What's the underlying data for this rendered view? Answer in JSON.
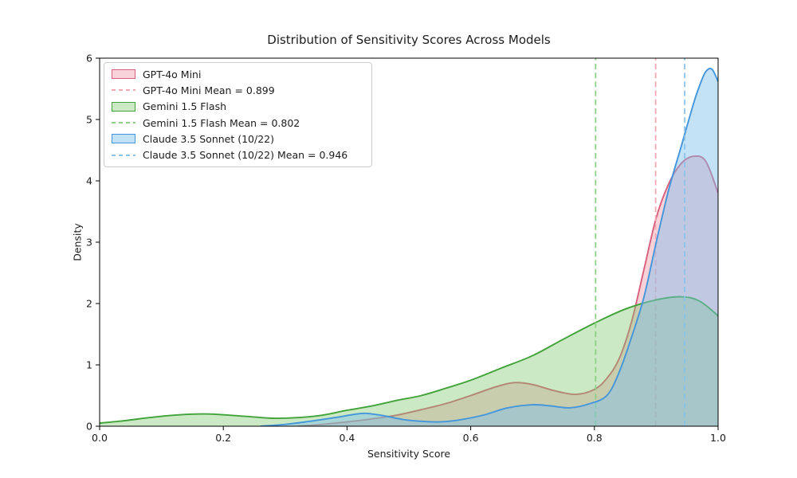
{
  "chart_data": {
    "type": "area",
    "subtype": "kde-density",
    "title": "Distribution of Sensitivity Scores Across Models",
    "xlabel": "Sensitivity Score",
    "ylabel": "Density",
    "xlim": [
      0.0,
      1.0
    ],
    "ylim": [
      0,
      6
    ],
    "xticks": [
      0.0,
      0.2,
      0.4,
      0.6,
      0.8,
      1.0
    ],
    "xtick_labels": [
      "0.0",
      "0.2",
      "0.4",
      "0.6",
      "0.8",
      "1.0"
    ],
    "yticks": [
      0,
      1,
      2,
      3,
      4,
      5,
      6
    ],
    "ytick_labels": [
      "0",
      "1",
      "2",
      "3",
      "4",
      "5",
      "6"
    ],
    "grid": false,
    "legend_position": "upper-left",
    "series": [
      {
        "name": "GPT-4o Mini",
        "mean": 0.899,
        "mean_label": "GPT-4o Mini Mean = 0.899",
        "line_color": "#d8607c",
        "fill_color": "rgba(236,136,156,0.38)",
        "mean_color": "#f3a6b4",
        "points": [
          [
            0.32,
            0.0
          ],
          [
            0.36,
            0.03
          ],
          [
            0.4,
            0.07
          ],
          [
            0.44,
            0.12
          ],
          [
            0.48,
            0.18
          ],
          [
            0.52,
            0.27
          ],
          [
            0.56,
            0.37
          ],
          [
            0.6,
            0.5
          ],
          [
            0.64,
            0.64
          ],
          [
            0.67,
            0.71
          ],
          [
            0.7,
            0.68
          ],
          [
            0.735,
            0.58
          ],
          [
            0.77,
            0.52
          ],
          [
            0.8,
            0.6
          ],
          [
            0.82,
            0.78
          ],
          [
            0.84,
            1.1
          ],
          [
            0.86,
            1.7
          ],
          [
            0.88,
            2.55
          ],
          [
            0.9,
            3.4
          ],
          [
            0.92,
            3.95
          ],
          [
            0.94,
            4.28
          ],
          [
            0.96,
            4.4
          ],
          [
            0.98,
            4.32
          ],
          [
            1.0,
            3.8
          ]
        ]
      },
      {
        "name": "Gemini 1.5 Flash",
        "mean": 0.802,
        "mean_label": "Gemini 1.5 Flash Mean = 0.802",
        "line_color": "#41a339",
        "fill_color": "rgba(120,196,103,0.38)",
        "mean_color": "#8ccf86",
        "points": [
          [
            0.0,
            0.05
          ],
          [
            0.04,
            0.09
          ],
          [
            0.08,
            0.14
          ],
          [
            0.12,
            0.18
          ],
          [
            0.17,
            0.2
          ],
          [
            0.21,
            0.18
          ],
          [
            0.25,
            0.15
          ],
          [
            0.28,
            0.13
          ],
          [
            0.32,
            0.14
          ],
          [
            0.36,
            0.18
          ],
          [
            0.4,
            0.26
          ],
          [
            0.44,
            0.33
          ],
          [
            0.48,
            0.42
          ],
          [
            0.52,
            0.5
          ],
          [
            0.56,
            0.62
          ],
          [
            0.6,
            0.75
          ],
          [
            0.65,
            0.95
          ],
          [
            0.7,
            1.15
          ],
          [
            0.75,
            1.42
          ],
          [
            0.8,
            1.68
          ],
          [
            0.85,
            1.91
          ],
          [
            0.9,
            2.06
          ],
          [
            0.94,
            2.11
          ],
          [
            0.97,
            2.04
          ],
          [
            1.0,
            1.8
          ]
        ]
      },
      {
        "name": "Claude 3.5 Sonnet (10/22)",
        "mean": 0.946,
        "mean_label": "Claude 3.5 Sonnet (10/22) Mean = 0.946",
        "line_color": "#4496dc",
        "fill_color": "rgba(125,190,235,0.45)",
        "mean_color": "#8bc3e9",
        "points": [
          [
            0.26,
            0.0
          ],
          [
            0.3,
            0.03
          ],
          [
            0.34,
            0.08
          ],
          [
            0.38,
            0.14
          ],
          [
            0.41,
            0.19
          ],
          [
            0.43,
            0.21
          ],
          [
            0.46,
            0.17
          ],
          [
            0.49,
            0.11
          ],
          [
            0.52,
            0.08
          ],
          [
            0.55,
            0.07
          ],
          [
            0.58,
            0.1
          ],
          [
            0.62,
            0.18
          ],
          [
            0.66,
            0.3
          ],
          [
            0.7,
            0.35
          ],
          [
            0.73,
            0.33
          ],
          [
            0.76,
            0.3
          ],
          [
            0.79,
            0.36
          ],
          [
            0.82,
            0.5
          ],
          [
            0.84,
            0.88
          ],
          [
            0.86,
            1.45
          ],
          [
            0.88,
            2.1
          ],
          [
            0.9,
            3.0
          ],
          [
            0.92,
            3.85
          ],
          [
            0.94,
            4.55
          ],
          [
            0.96,
            5.25
          ],
          [
            0.97,
            5.55
          ],
          [
            0.98,
            5.78
          ],
          [
            0.99,
            5.82
          ],
          [
            1.0,
            5.62
          ]
        ]
      }
    ],
    "legend": [
      {
        "label": "GPT-4o Mini",
        "swatch": "patch",
        "series": 0
      },
      {
        "label": "GPT-4o Mini Mean = 0.899",
        "swatch": "dashed",
        "series": 0
      },
      {
        "label": "Gemini 1.5 Flash",
        "swatch": "patch",
        "series": 1
      },
      {
        "label": "Gemini 1.5 Flash Mean = 0.802",
        "swatch": "dashed",
        "series": 1
      },
      {
        "label": "Claude 3.5 Sonnet (10/22)",
        "swatch": "patch",
        "series": 2
      },
      {
        "label": "Claude 3.5 Sonnet (10/22) Mean = 0.946",
        "swatch": "dashed",
        "series": 2
      }
    ],
    "axis_color": "#000000",
    "text_color": "#1c1c1c"
  }
}
